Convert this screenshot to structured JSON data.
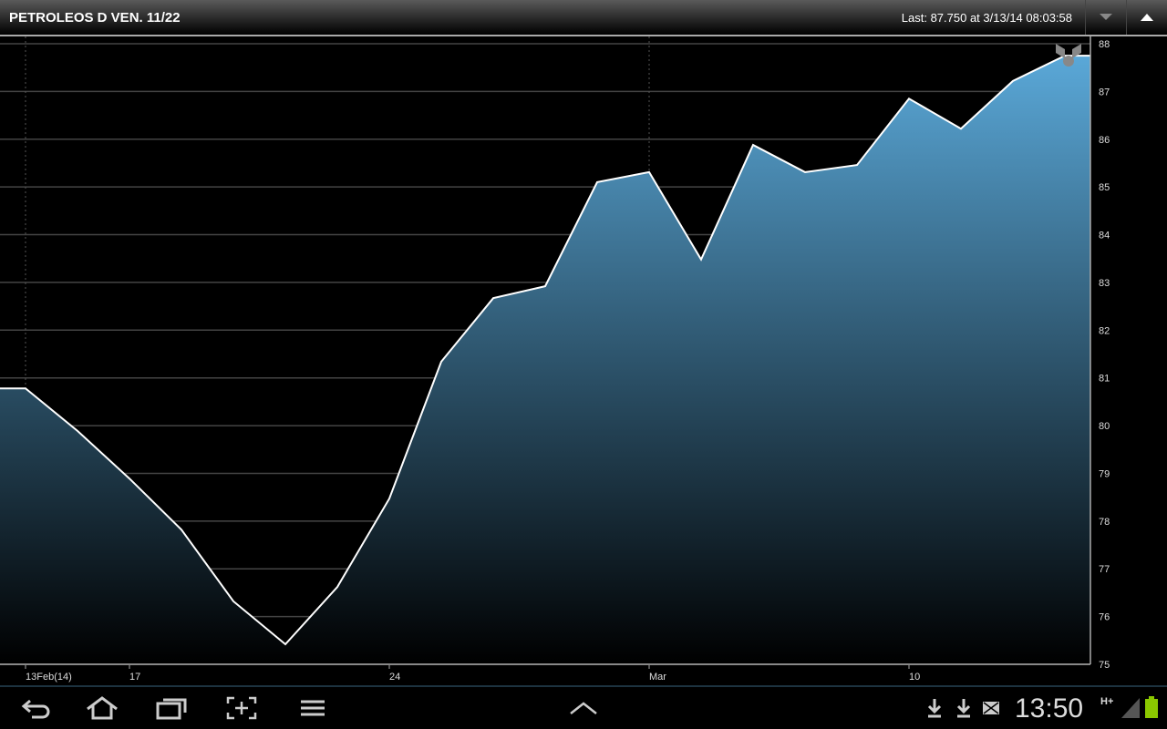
{
  "header": {
    "title": "PETROLEOS D VEN. 11/22",
    "last_quote": "Last: 87.750 at 3/13/14 08:03:58",
    "collapse_icon": "triangle-down-icon",
    "expand_icon": "triangle-up-icon"
  },
  "chart_data": {
    "type": "area",
    "x": [
      "13Feb",
      "14Feb",
      "17Feb",
      "18Feb",
      "19Feb",
      "20Feb",
      "21Feb",
      "24Feb",
      "25Feb",
      "26Feb",
      "27Feb",
      "28Feb",
      "3Mar",
      "4Mar",
      "5Mar",
      "6Mar",
      "7Mar",
      "10Mar",
      "11Mar",
      "12Mar",
      "13Mar"
    ],
    "values": [
      80.78,
      79.89,
      78.89,
      77.82,
      76.32,
      75.42,
      76.62,
      78.47,
      81.34,
      82.67,
      82.92,
      85.1,
      85.31,
      83.48,
      85.88,
      85.31,
      85.46,
      86.85,
      86.22,
      87.22,
      87.75
    ],
    "ylim": [
      75,
      88
    ],
    "y_ticks": [
      "75",
      "76",
      "77",
      "78",
      "79",
      "80",
      "81",
      "82",
      "83",
      "84",
      "85",
      "86",
      "87",
      "88"
    ],
    "x_ticks": [
      {
        "label": "13Feb(14)",
        "index": 0
      },
      {
        "label": "17",
        "index": 2
      },
      {
        "label": "24",
        "index": 7
      },
      {
        "label": "Mar",
        "index": 12
      },
      {
        "label": "10",
        "index": 17
      }
    ],
    "grid": true,
    "line_color": "#ffffff",
    "fill_top_color": "#5aa8d8",
    "fill_bottom_color": "#000000"
  },
  "navbar": {
    "clock": "13:50",
    "network": "H+",
    "battery_color": "#8bc800"
  }
}
